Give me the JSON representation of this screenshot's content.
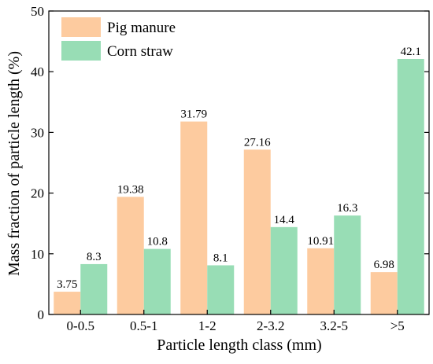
{
  "chart_data": {
    "type": "bar",
    "title": "",
    "xlabel": "Particle length class (mm)",
    "ylabel": "Mass fraction of particle length (%)",
    "categories": [
      "0-0.5",
      "0.5-1",
      "1-2",
      "2-3.2",
      "3.2-5",
      ">5"
    ],
    "ylim": [
      0,
      50
    ],
    "yticks": [
      0,
      10,
      20,
      30,
      40,
      50
    ],
    "grid": false,
    "legend": "top-left",
    "series": [
      {
        "name": "Pig manure",
        "color": "#FDCB9F",
        "values": [
          3.75,
          19.38,
          31.79,
          27.16,
          10.91,
          6.98
        ],
        "labels": [
          "3.75",
          "19.38",
          "31.79",
          "27.16",
          "10.91",
          "6.98"
        ]
      },
      {
        "name": "Corn straw",
        "color": "#98DDB5",
        "values": [
          8.3,
          10.8,
          8.1,
          14.4,
          16.3,
          42.1
        ],
        "labels": [
          "8.3",
          "10.8",
          "8.1",
          "14.4",
          "16.3",
          "42.1"
        ]
      }
    ]
  }
}
